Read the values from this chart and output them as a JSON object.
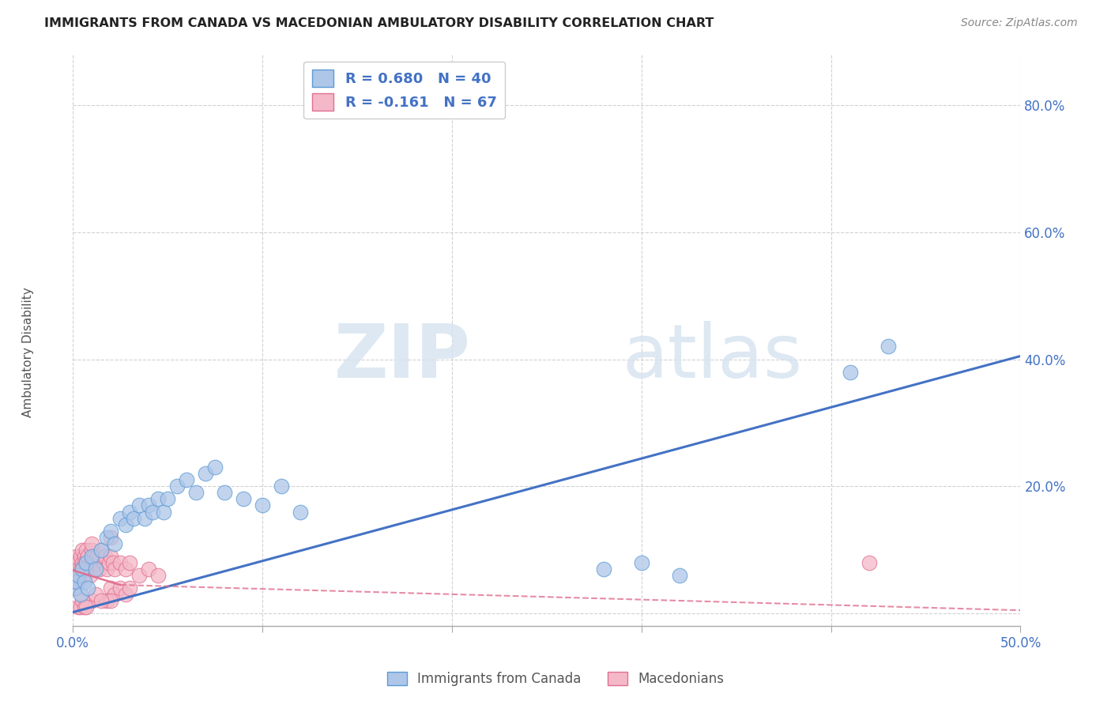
{
  "title": "IMMIGRANTS FROM CANADA VS MACEDONIAN AMBULATORY DISABILITY CORRELATION CHART",
  "source": "Source: ZipAtlas.com",
  "ylabel": "Ambulatory Disability",
  "xlim": [
    0.0,
    0.5
  ],
  "ylim": [
    -0.02,
    0.88
  ],
  "xticks": [
    0.0,
    0.1,
    0.2,
    0.3,
    0.4,
    0.5
  ],
  "yticks": [
    0.0,
    0.2,
    0.4,
    0.6,
    0.8
  ],
  "xticklabels": [
    "0.0%",
    "",
    "",
    "",
    "",
    "50.0%"
  ],
  "yticklabels_right": [
    "",
    "20.0%",
    "40.0%",
    "60.0%",
    "80.0%"
  ],
  "blue_color": "#aec6e8",
  "blue_edge_color": "#5b9bd5",
  "pink_color": "#f4b8c8",
  "pink_edge_color": "#e07090",
  "blue_line_color": "#4472c4",
  "pink_line_color": "#e07090",
  "legend_R_blue": "R = 0.680",
  "legend_N_blue": "N = 40",
  "legend_R_pink": "R = -0.161",
  "legend_N_pink": "N = 67",
  "blue_scatter_x": [
    0.001,
    0.002,
    0.003,
    0.004,
    0.005,
    0.006,
    0.007,
    0.008,
    0.01,
    0.012,
    0.015,
    0.018,
    0.02,
    0.022,
    0.025,
    0.028,
    0.03,
    0.032,
    0.035,
    0.038,
    0.04,
    0.042,
    0.045,
    0.048,
    0.05,
    0.055,
    0.06,
    0.065,
    0.07,
    0.075,
    0.08,
    0.09,
    0.1,
    0.11,
    0.12,
    0.28,
    0.3,
    0.32,
    0.41,
    0.43
  ],
  "blue_scatter_y": [
    0.04,
    0.05,
    0.06,
    0.03,
    0.07,
    0.05,
    0.08,
    0.04,
    0.09,
    0.07,
    0.1,
    0.12,
    0.13,
    0.11,
    0.15,
    0.14,
    0.16,
    0.15,
    0.17,
    0.15,
    0.17,
    0.16,
    0.18,
    0.16,
    0.18,
    0.2,
    0.21,
    0.19,
    0.22,
    0.23,
    0.19,
    0.18,
    0.17,
    0.2,
    0.16,
    0.07,
    0.08,
    0.06,
    0.38,
    0.42
  ],
  "pink_scatter_x": [
    0.001,
    0.001,
    0.001,
    0.001,
    0.002,
    0.002,
    0.002,
    0.002,
    0.003,
    0.003,
    0.003,
    0.003,
    0.004,
    0.004,
    0.004,
    0.005,
    0.005,
    0.005,
    0.006,
    0.006,
    0.006,
    0.007,
    0.007,
    0.007,
    0.008,
    0.008,
    0.009,
    0.009,
    0.01,
    0.01,
    0.011,
    0.011,
    0.012,
    0.013,
    0.014,
    0.015,
    0.016,
    0.017,
    0.018,
    0.019,
    0.02,
    0.021,
    0.022,
    0.025,
    0.028,
    0.03,
    0.035,
    0.04,
    0.045,
    0.02,
    0.022,
    0.025,
    0.028,
    0.03,
    0.018,
    0.02,
    0.01,
    0.012,
    0.015,
    0.003,
    0.004,
    0.005,
    0.006,
    0.007,
    0.42,
    0.01,
    0.02
  ],
  "pink_scatter_y": [
    0.04,
    0.06,
    0.08,
    0.05,
    0.07,
    0.09,
    0.05,
    0.06,
    0.08,
    0.07,
    0.06,
    0.05,
    0.09,
    0.07,
    0.06,
    0.1,
    0.08,
    0.07,
    0.09,
    0.08,
    0.06,
    0.1,
    0.08,
    0.07,
    0.09,
    0.07,
    0.08,
    0.06,
    0.1,
    0.08,
    0.09,
    0.07,
    0.08,
    0.09,
    0.07,
    0.1,
    0.08,
    0.09,
    0.07,
    0.08,
    0.09,
    0.08,
    0.07,
    0.08,
    0.07,
    0.08,
    0.06,
    0.07,
    0.06,
    0.04,
    0.03,
    0.04,
    0.03,
    0.04,
    0.02,
    0.02,
    0.02,
    0.03,
    0.02,
    0.01,
    0.01,
    0.02,
    0.01,
    0.01,
    0.08,
    0.11,
    0.12
  ],
  "blue_trendline": [
    0.0,
    0.002,
    0.5,
    0.405
  ],
  "pink_trendline_solid": [
    0.0,
    0.068,
    0.025,
    0.045
  ],
  "pink_trendline_dashed": [
    0.025,
    0.045,
    0.5,
    0.005
  ],
  "watermark_zip": "ZIP",
  "watermark_atlas": "atlas",
  "background_color": "#ffffff",
  "grid_color": "#cccccc"
}
